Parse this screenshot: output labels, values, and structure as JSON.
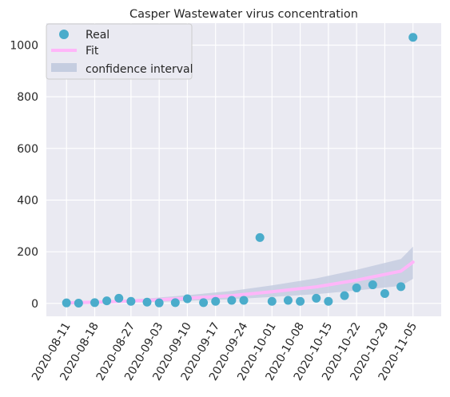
{
  "chart_data": {
    "type": "scatter",
    "title": "Casper Wastewater virus concentration",
    "xlabel": "",
    "ylabel": "",
    "xlim": [
      "2020-08-06",
      "2020-11-12"
    ],
    "ylim": [
      -50,
      1085
    ],
    "grid": true,
    "legend_position": "top-left",
    "x_tick_labels": [
      "2020-08-11",
      "2020-08-18",
      "2020-08-27",
      "2020-09-03",
      "2020-09-10",
      "2020-09-17",
      "2020-09-24",
      "2020-10-01",
      "2020-10-08",
      "2020-10-15",
      "2020-10-22",
      "2020-10-29",
      "2020-11-05"
    ],
    "y_ticks": [
      0,
      200,
      400,
      600,
      800,
      1000
    ],
    "series": [
      {
        "name": "Real",
        "kind": "points",
        "color": "#4aaccb",
        "points": [
          {
            "x": "2020-08-11",
            "y": 2
          },
          {
            "x": "2020-08-14",
            "y": 1
          },
          {
            "x": "2020-08-18",
            "y": 3
          },
          {
            "x": "2020-08-21",
            "y": 10
          },
          {
            "x": "2020-08-24",
            "y": 20
          },
          {
            "x": "2020-08-27",
            "y": 8
          },
          {
            "x": "2020-08-31",
            "y": 5
          },
          {
            "x": "2020-09-03",
            "y": 2
          },
          {
            "x": "2020-09-07",
            "y": 3
          },
          {
            "x": "2020-09-10",
            "y": 18
          },
          {
            "x": "2020-09-14",
            "y": 3
          },
          {
            "x": "2020-09-17",
            "y": 8
          },
          {
            "x": "2020-09-21",
            "y": 12
          },
          {
            "x": "2020-09-24",
            "y": 12
          },
          {
            "x": "2020-09-28",
            "y": 255
          },
          {
            "x": "2020-10-01",
            "y": 8
          },
          {
            "x": "2020-10-05",
            "y": 12
          },
          {
            "x": "2020-10-08",
            "y": 8
          },
          {
            "x": "2020-10-12",
            "y": 20
          },
          {
            "x": "2020-10-15",
            "y": 8
          },
          {
            "x": "2020-10-19",
            "y": 30
          },
          {
            "x": "2020-10-22",
            "y": 60
          },
          {
            "x": "2020-10-26",
            "y": 72
          },
          {
            "x": "2020-10-29",
            "y": 38
          },
          {
            "x": "2020-11-02",
            "y": 65
          },
          {
            "x": "2020-11-05",
            "y": 1030
          }
        ]
      },
      {
        "name": "Fit",
        "kind": "line",
        "color": "#ffb6f9",
        "points": [
          {
            "x": "2020-08-11",
            "y": 2
          },
          {
            "x": "2020-08-21",
            "y": 6
          },
          {
            "x": "2020-08-31",
            "y": 12
          },
          {
            "x": "2020-09-10",
            "y": 20
          },
          {
            "x": "2020-09-21",
            "y": 30
          },
          {
            "x": "2020-10-01",
            "y": 45
          },
          {
            "x": "2020-10-12",
            "y": 64
          },
          {
            "x": "2020-10-22",
            "y": 90
          },
          {
            "x": "2020-11-02",
            "y": 125
          },
          {
            "x": "2020-11-05",
            "y": 160
          }
        ]
      },
      {
        "name": "confidence interval",
        "kind": "band",
        "color": "#c5cde0",
        "points": [
          {
            "x": "2020-08-11",
            "lower": 0,
            "upper": 5
          },
          {
            "x": "2020-08-21",
            "lower": 2,
            "upper": 10
          },
          {
            "x": "2020-08-31",
            "lower": 5,
            "upper": 19
          },
          {
            "x": "2020-09-10",
            "lower": 10,
            "upper": 32
          },
          {
            "x": "2020-09-21",
            "lower": 16,
            "upper": 48
          },
          {
            "x": "2020-10-01",
            "lower": 25,
            "upper": 70
          },
          {
            "x": "2020-10-12",
            "lower": 36,
            "upper": 97
          },
          {
            "x": "2020-10-22",
            "lower": 50,
            "upper": 130
          },
          {
            "x": "2020-11-02",
            "lower": 68,
            "upper": 172
          },
          {
            "x": "2020-11-05",
            "lower": 95,
            "upper": 220
          }
        ]
      }
    ]
  }
}
